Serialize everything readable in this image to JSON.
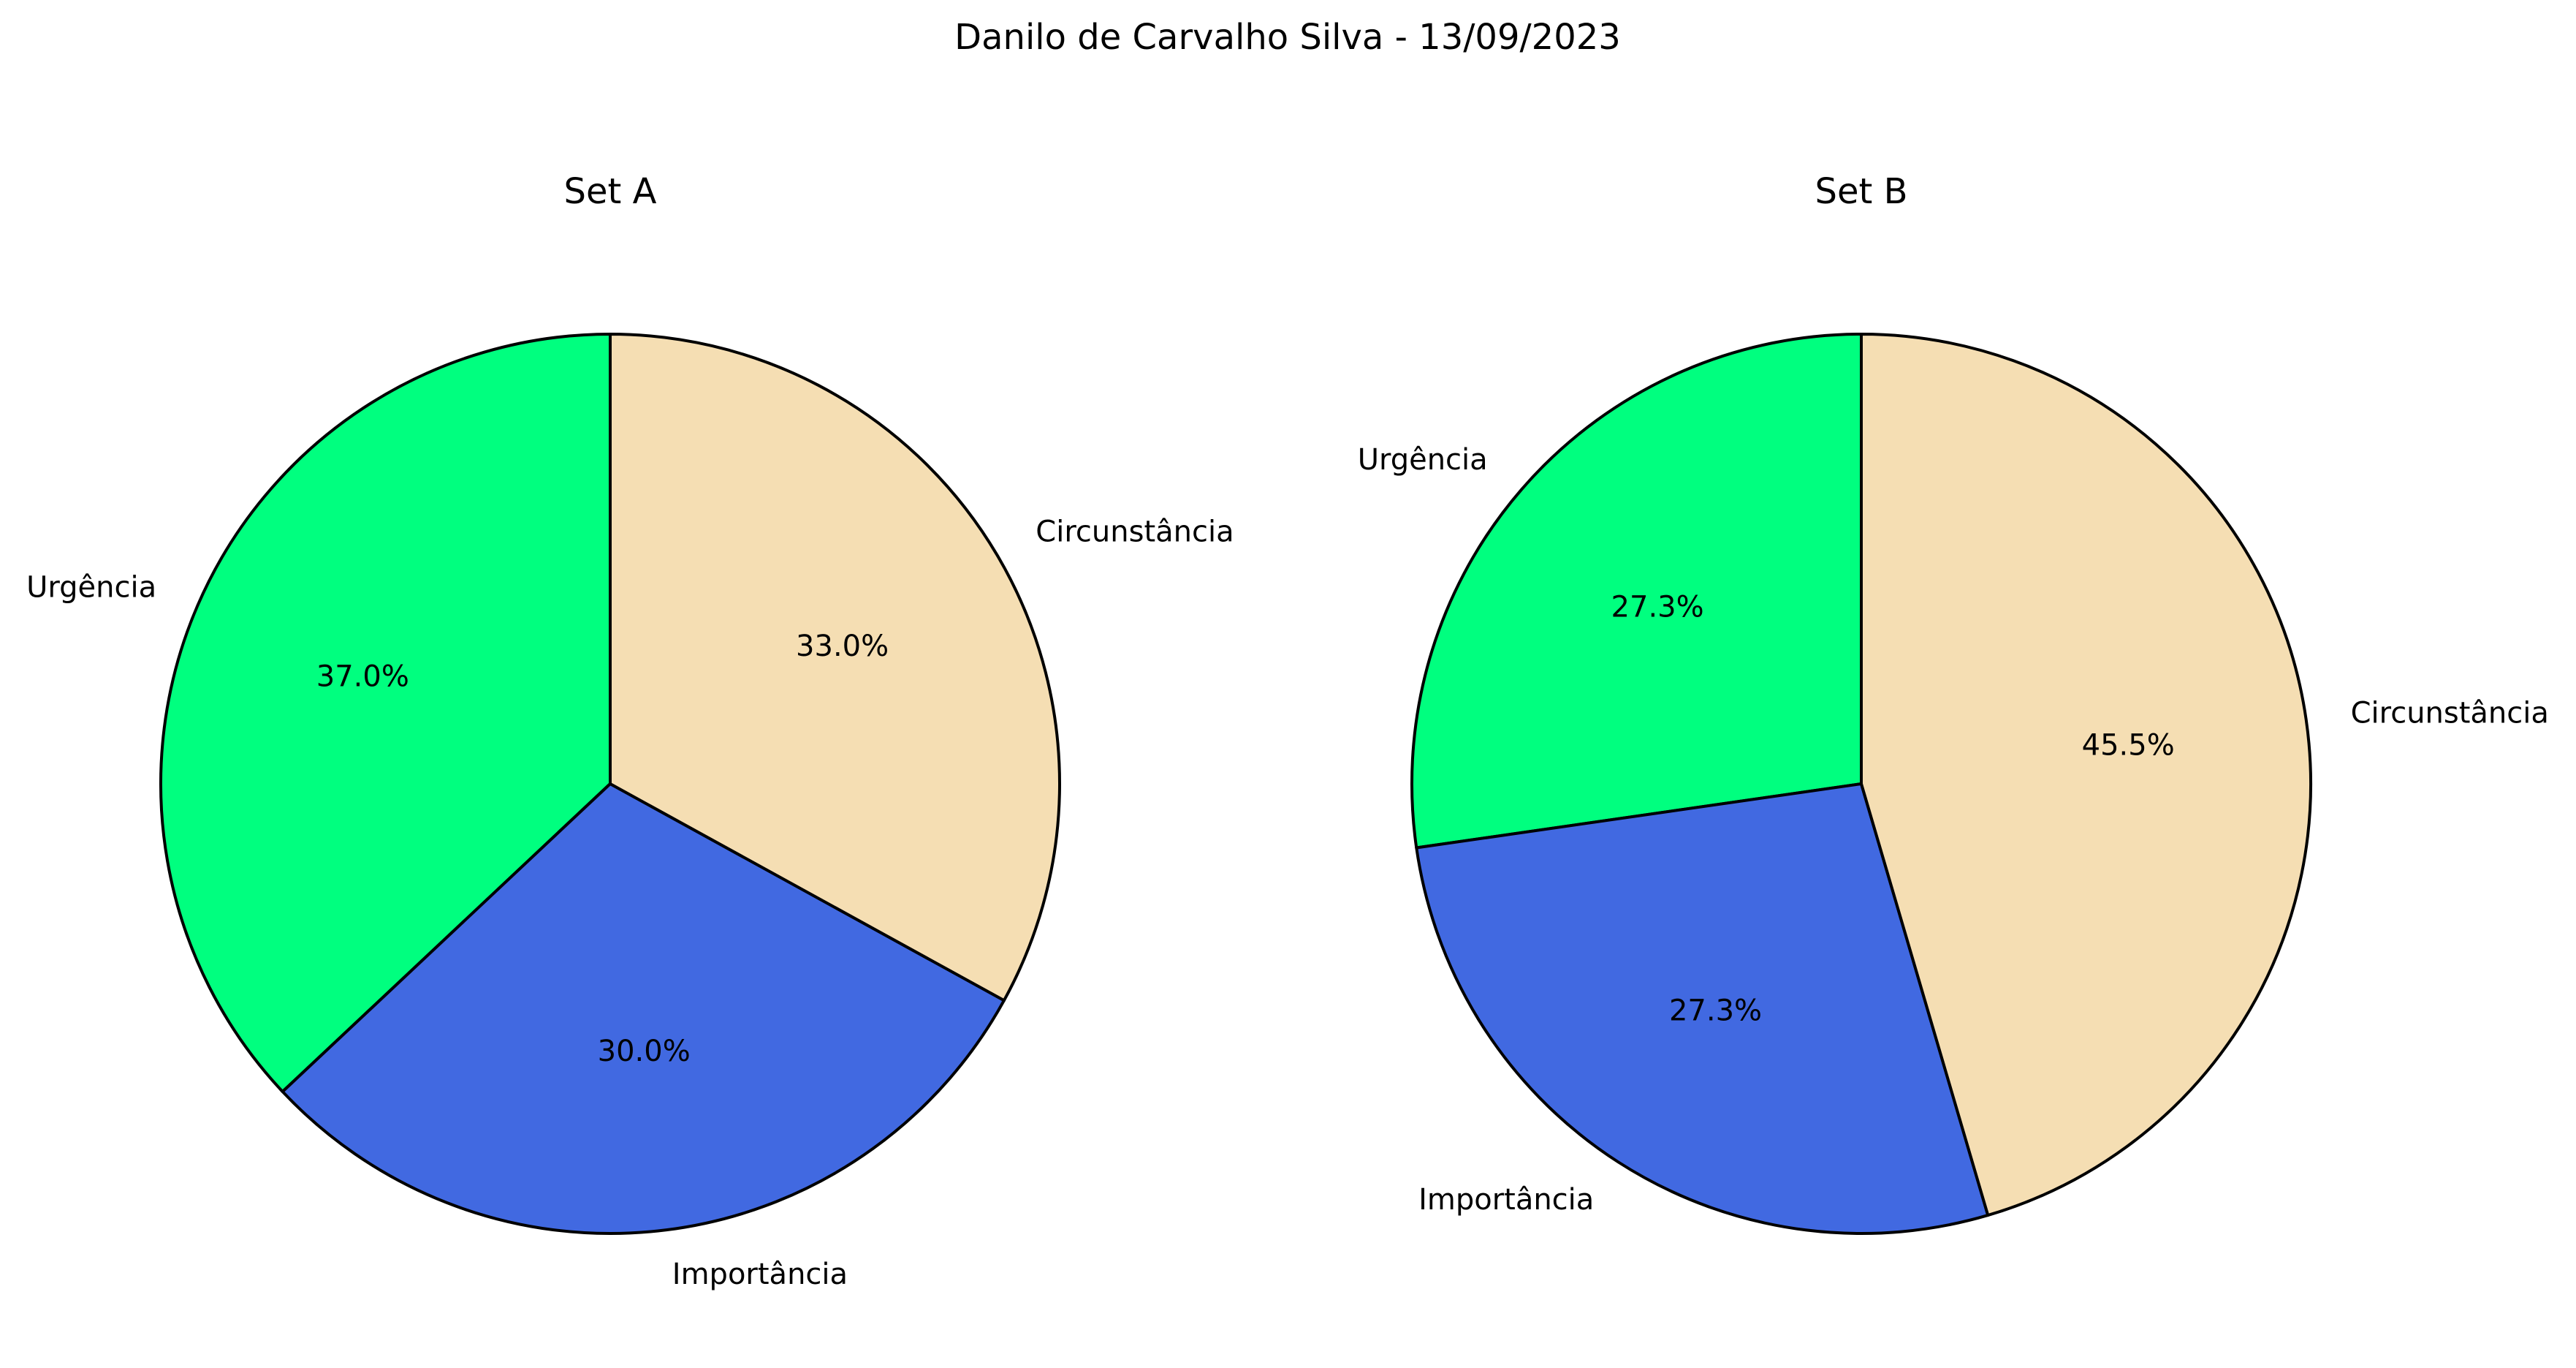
{
  "figure": {
    "suptitle": "Danilo de Carvalho Silva - 13/09/2023"
  },
  "chart_data": [
    {
      "type": "pie",
      "title": "Set A",
      "start_angle_deg": 90,
      "direction": "counterclockwise",
      "slices": [
        {
          "label": "Urgência",
          "value": 37.0,
          "pct_label": "37.0%",
          "color": "#00FF7F"
        },
        {
          "label": "Importância",
          "value": 30.0,
          "pct_label": "30.0%",
          "color": "#4169E1"
        },
        {
          "label": "Circunstância",
          "value": 33.0,
          "pct_label": "33.0%",
          "color": "#F5DEB3"
        }
      ]
    },
    {
      "type": "pie",
      "title": "Set B",
      "start_angle_deg": 90,
      "direction": "counterclockwise",
      "slices": [
        {
          "label": "Urgência",
          "value": 27.3,
          "pct_label": "27.3%",
          "color": "#00FF7F"
        },
        {
          "label": "Importância",
          "value": 27.3,
          "pct_label": "27.3%",
          "color": "#4169E1"
        },
        {
          "label": "Circunstância",
          "value": 45.5,
          "pct_label": "45.5%",
          "color": "#F5DEB3"
        }
      ]
    }
  ]
}
